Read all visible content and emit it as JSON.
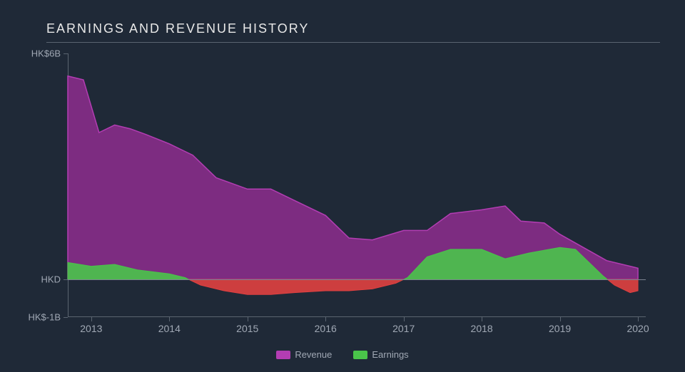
{
  "chart": {
    "type": "area",
    "title": "EARNINGS AND REVENUE HISTORY",
    "background_color": "#1f2937",
    "title_color": "#e8e8e8",
    "axis_label_color": "#a0a8b4",
    "axis_line_color": "#5a6470",
    "baseline_color": "#7a8290",
    "title_fontsize": 18,
    "label_fontsize": 13,
    "y_axis": {
      "min": -1,
      "max": 6,
      "ticks": [
        {
          "value": 6,
          "label": "HK$6B"
        },
        {
          "value": 0,
          "label": "HKD"
        },
        {
          "value": -1,
          "label": "HK$-1B"
        }
      ]
    },
    "x_axis": {
      "min": 2012.7,
      "max": 2020.1,
      "ticks": [
        2013,
        2014,
        2015,
        2016,
        2017,
        2018,
        2019,
        2020
      ]
    },
    "series": [
      {
        "name": "Revenue",
        "color_fill": "#8e2d8e",
        "color_fill_opacity": 0.85,
        "color_stroke": "#b33db3",
        "points": [
          [
            2012.7,
            5.4
          ],
          [
            2012.9,
            5.3
          ],
          [
            2013.1,
            3.9
          ],
          [
            2013.3,
            4.1
          ],
          [
            2013.5,
            4.0
          ],
          [
            2013.7,
            3.85
          ],
          [
            2014.0,
            3.6
          ],
          [
            2014.3,
            3.3
          ],
          [
            2014.6,
            2.7
          ],
          [
            2015.0,
            2.4
          ],
          [
            2015.3,
            2.4
          ],
          [
            2015.6,
            2.1
          ],
          [
            2016.0,
            1.7
          ],
          [
            2016.3,
            1.1
          ],
          [
            2016.6,
            1.05
          ],
          [
            2017.0,
            1.3
          ],
          [
            2017.3,
            1.3
          ],
          [
            2017.6,
            1.75
          ],
          [
            2018.0,
            1.85
          ],
          [
            2018.3,
            1.95
          ],
          [
            2018.5,
            1.55
          ],
          [
            2018.8,
            1.5
          ],
          [
            2019.0,
            1.2
          ],
          [
            2019.3,
            0.85
          ],
          [
            2019.6,
            0.5
          ],
          [
            2019.9,
            0.35
          ],
          [
            2020.0,
            0.3
          ]
        ]
      },
      {
        "name": "Earnings",
        "color_positive": "#4ac44a",
        "color_negative": "#e04040",
        "fill_opacity": 0.9,
        "points": [
          [
            2012.7,
            0.45
          ],
          [
            2013.0,
            0.35
          ],
          [
            2013.3,
            0.4
          ],
          [
            2013.6,
            0.25
          ],
          [
            2014.0,
            0.15
          ],
          [
            2014.2,
            0.05
          ],
          [
            2014.4,
            -0.15
          ],
          [
            2014.7,
            -0.3
          ],
          [
            2015.0,
            -0.4
          ],
          [
            2015.3,
            -0.4
          ],
          [
            2015.6,
            -0.35
          ],
          [
            2016.0,
            -0.3
          ],
          [
            2016.3,
            -0.3
          ],
          [
            2016.6,
            -0.25
          ],
          [
            2016.9,
            -0.1
          ],
          [
            2017.05,
            0.05
          ],
          [
            2017.3,
            0.6
          ],
          [
            2017.6,
            0.8
          ],
          [
            2018.0,
            0.8
          ],
          [
            2018.3,
            0.55
          ],
          [
            2018.6,
            0.7
          ],
          [
            2019.0,
            0.85
          ],
          [
            2019.2,
            0.8
          ],
          [
            2019.4,
            0.4
          ],
          [
            2019.55,
            0.1
          ],
          [
            2019.7,
            -0.15
          ],
          [
            2019.9,
            -0.35
          ],
          [
            2020.0,
            -0.3
          ]
        ]
      }
    ],
    "legend": [
      {
        "label": "Revenue",
        "color": "#b33db3"
      },
      {
        "label": "Earnings",
        "color": "#4ac44a"
      }
    ]
  }
}
